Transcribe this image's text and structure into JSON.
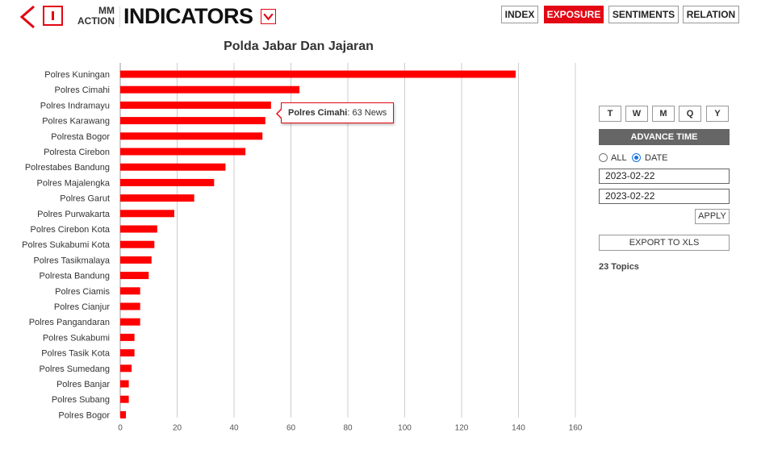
{
  "header": {
    "brand_top": "MM",
    "brand_bottom": "ACTION",
    "title": "INDICATORS",
    "nav": [
      {
        "label": "INDEX",
        "active": false
      },
      {
        "label": "EXPOSURE",
        "active": true
      },
      {
        "label": "SENTIMENTS",
        "active": false
      },
      {
        "label": "RELATION",
        "active": false
      }
    ]
  },
  "colors": {
    "accent": "#e30613",
    "bar": "#ff0000",
    "grid": "#cccccc",
    "advance_bg": "#666666"
  },
  "chart_data": {
    "type": "bar",
    "orientation": "horizontal",
    "title": "Polda Jabar Dan Jajaran",
    "categories": [
      "Polres Kuningan",
      "Polres Cimahi",
      "Polres Indramayu",
      "Polres Karawang",
      "Polresta Bogor",
      "Polresta Cirebon",
      "Polrestabes Bandung",
      "Polres Majalengka",
      "Polres Garut",
      "Polres Purwakarta",
      "Polres Cirebon Kota",
      "Polres Sukabumi Kota",
      "Polres Tasikmalaya",
      "Polresta Bandung",
      "Polres Ciamis",
      "Polres Cianjur",
      "Polres Pangandaran",
      "Polres Sukabumi",
      "Polres Tasik Kota",
      "Polres Sumedang",
      "Polres Banjar",
      "Polres Subang",
      "Polres Bogor"
    ],
    "values": [
      139,
      63,
      53,
      51,
      50,
      44,
      37,
      33,
      26,
      19,
      13,
      12,
      11,
      10,
      7,
      7,
      7,
      5,
      5,
      4,
      3,
      3,
      2
    ],
    "xlim": [
      0,
      160
    ],
    "xticks": [
      0,
      20,
      40,
      60,
      80,
      100,
      120,
      140,
      160
    ],
    "grid": true,
    "tooltip": {
      "name": "Polres Cimahi",
      "text": ": 63 News"
    }
  },
  "panel": {
    "periods": [
      "T",
      "W",
      "M",
      "Q",
      "Y"
    ],
    "advance_label": "ADVANCE TIME",
    "radio_all": "ALL",
    "radio_date": "DATE",
    "selected_radio": "date",
    "date_from": "2023-02-22",
    "date_to": "2023-02-22",
    "apply_label": "APPLY",
    "export_label": "EXPORT TO XLS",
    "topics": "23 Topics"
  }
}
